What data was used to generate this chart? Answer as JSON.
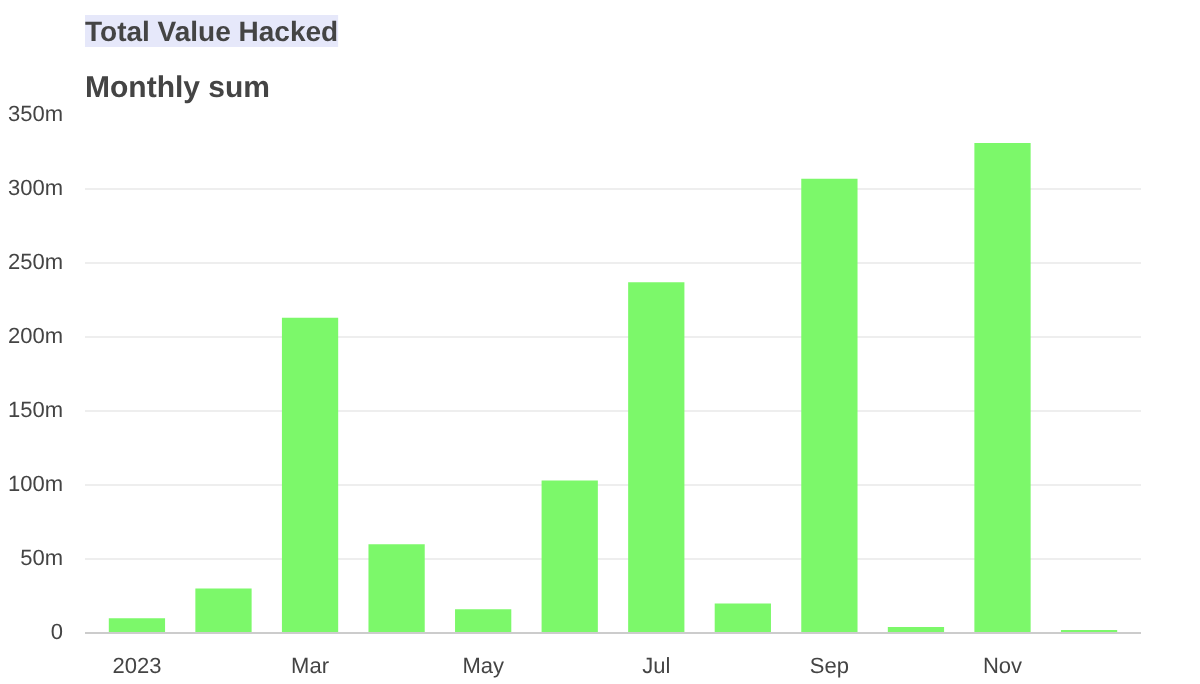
{
  "chart_data": {
    "type": "bar",
    "title": "Monthly sum",
    "annotations": [
      "Total Value Hacked"
    ],
    "categories": [
      "2023",
      null,
      "Mar",
      null,
      "May",
      null,
      "Jul",
      null,
      "Sep",
      null,
      "Nov",
      null
    ],
    "values": [
      10,
      30,
      213,
      60,
      16,
      103,
      237,
      20,
      307,
      4,
      331,
      2
    ],
    "color": "#7cf86a",
    "ylim": [
      0,
      350
    ],
    "yticks": [
      {
        "value": 0,
        "label": "0"
      },
      {
        "value": 50,
        "label": "50m"
      },
      {
        "value": 100,
        "label": "100m"
      },
      {
        "value": 150,
        "label": "150m"
      },
      {
        "value": 200,
        "label": "200m"
      },
      {
        "value": 250,
        "label": "250m"
      },
      {
        "value": 300,
        "label": "300m"
      },
      {
        "value": 350,
        "label": "350m"
      }
    ],
    "grid": "y"
  }
}
